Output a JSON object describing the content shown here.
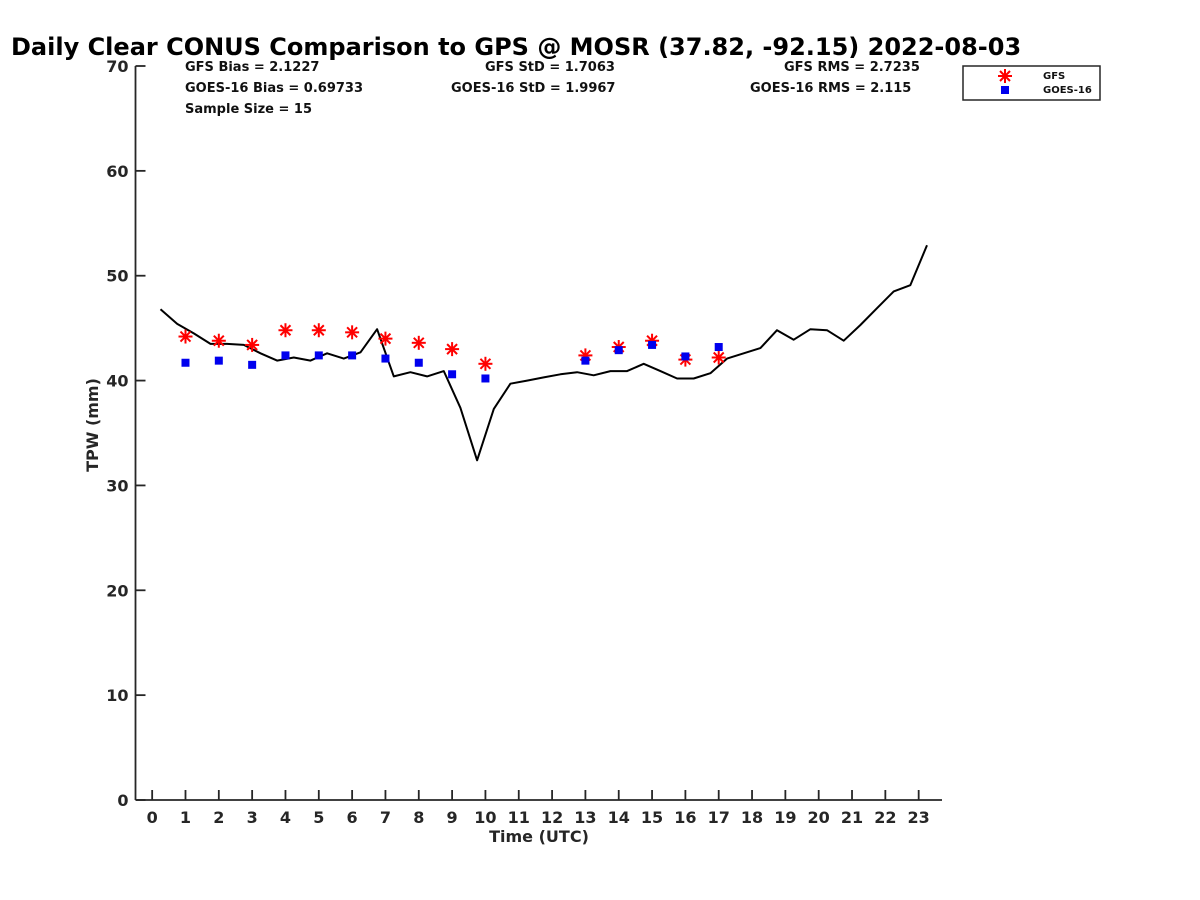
{
  "chart_data": {
    "type": "line",
    "title": "Daily Clear CONUS Comparison to GPS @ MOSR (37.82, -92.15) 2022-08-03",
    "xlabel": "Time (UTC)",
    "ylabel": "TPW (mm)",
    "xlim": [
      -0.5,
      23.7
    ],
    "ylim": [
      0,
      70
    ],
    "x_ticks": [
      "0",
      "1",
      "2",
      "3",
      "4",
      "5",
      "6",
      "7",
      "8",
      "9",
      "10",
      "11",
      "12",
      "13",
      "14",
      "15",
      "16",
      "17",
      "18",
      "19",
      "20",
      "21",
      "22",
      "23"
    ],
    "y_ticks": [
      "0",
      "10",
      "20",
      "30",
      "40",
      "50",
      "60",
      "70"
    ],
    "stats": {
      "gfs_bias": "GFS Bias = 2.1227",
      "goes_bias": "GOES-16 Bias = 0.69733",
      "sample_size": "Sample Size = 15",
      "gfs_std": "GFS StD = 1.7063",
      "goes_std": "GOES-16 StD = 1.9967",
      "gfs_rms": "GFS RMS = 2.7235",
      "goes_rms": "GOES-16 RMS = 2.115"
    },
    "legend": {
      "placement": "top-right",
      "gfs_label": "GFS",
      "goes_label": "GOES-16"
    },
    "series": [
      {
        "name": "GPS",
        "kind": "line",
        "color": "#000000",
        "points": [
          [
            0.25,
            46.8
          ],
          [
            0.75,
            45.4
          ],
          [
            1.25,
            44.5
          ],
          [
            1.75,
            43.5
          ],
          [
            2.25,
            43.5
          ],
          [
            2.75,
            43.4
          ],
          [
            3.25,
            42.6
          ],
          [
            3.75,
            41.9
          ],
          [
            4.25,
            42.2
          ],
          [
            4.75,
            41.9
          ],
          [
            5.25,
            42.6
          ],
          [
            5.75,
            42.1
          ],
          [
            6.25,
            42.7
          ],
          [
            6.75,
            44.9
          ],
          [
            7.25,
            40.4
          ],
          [
            7.75,
            40.8
          ],
          [
            8.25,
            40.4
          ],
          [
            8.75,
            40.9
          ],
          [
            9.25,
            37.4
          ],
          [
            9.75,
            32.4
          ],
          [
            10.25,
            37.3
          ],
          [
            10.75,
            39.7
          ],
          [
            11.25,
            40.0
          ],
          [
            11.75,
            40.3
          ],
          [
            12.25,
            40.6
          ],
          [
            12.75,
            40.8
          ],
          [
            13.25,
            40.5
          ],
          [
            13.75,
            40.9
          ],
          [
            14.25,
            40.9
          ],
          [
            14.75,
            41.6
          ],
          [
            15.25,
            40.9
          ],
          [
            15.75,
            40.2
          ],
          [
            16.25,
            40.2
          ],
          [
            16.75,
            40.7
          ],
          [
            17.25,
            42.1
          ],
          [
            17.75,
            42.6
          ],
          [
            18.25,
            43.1
          ],
          [
            18.75,
            44.8
          ],
          [
            19.25,
            43.9
          ],
          [
            19.75,
            44.9
          ],
          [
            20.25,
            44.8
          ],
          [
            20.75,
            43.8
          ],
          [
            21.25,
            45.3
          ],
          [
            21.75,
            46.9
          ],
          [
            22.25,
            48.5
          ],
          [
            22.75,
            49.1
          ],
          [
            23.25,
            52.9
          ]
        ]
      },
      {
        "name": "GFS",
        "kind": "scatter",
        "marker": "asterisk",
        "color": "#ff0000",
        "x": [
          1,
          2,
          3,
          4,
          5,
          6,
          7,
          8,
          9,
          10,
          13,
          14,
          15,
          16,
          17
        ],
        "y": [
          44.2,
          43.8,
          43.4,
          44.8,
          44.8,
          44.6,
          44.0,
          43.6,
          43.0,
          41.6,
          42.4,
          43.2,
          43.8,
          42.0,
          42.2
        ]
      },
      {
        "name": "GOES-16",
        "kind": "scatter",
        "marker": "square",
        "color": "#0000ee",
        "x": [
          1,
          2,
          3,
          4,
          5,
          6,
          7,
          8,
          9,
          10,
          13,
          14,
          15,
          16,
          17
        ],
        "y": [
          41.7,
          41.9,
          41.5,
          42.4,
          42.4,
          42.4,
          42.1,
          41.7,
          40.6,
          40.2,
          41.9,
          42.9,
          43.4,
          42.3,
          43.2
        ]
      }
    ]
  }
}
